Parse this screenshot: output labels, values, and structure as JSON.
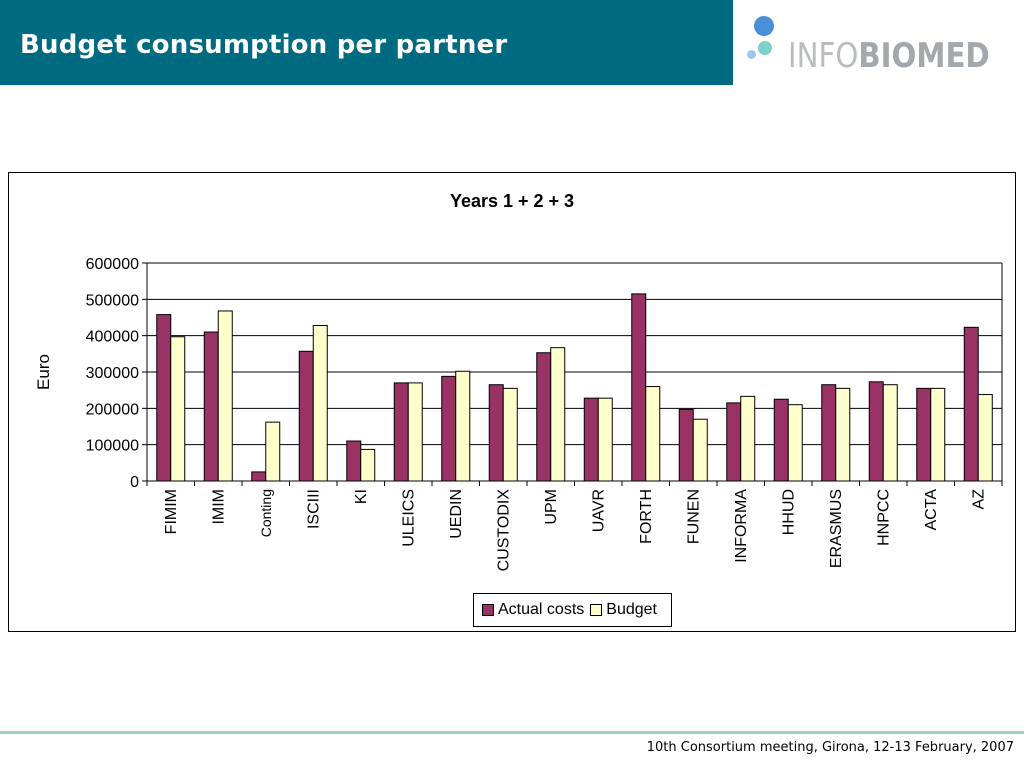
{
  "header": {
    "title": "Budget consumption per partner"
  },
  "logo": {
    "text_light": "INFO",
    "text_bold": "BIOMED",
    "dot_colors": [
      "#4a90d9",
      "#7fd0c9",
      "#9ec8e8"
    ]
  },
  "colors": {
    "title_bar": "#006a80",
    "actual": "#993366",
    "budget": "#ffffcc",
    "footer_line": "#9fd3c7"
  },
  "chart_data": {
    "type": "bar",
    "title": "Years 1 + 2 + 3",
    "xlabel": "",
    "ylabel": "Euro",
    "ylim": [
      0,
      600000
    ],
    "yticks": [
      "0",
      "100000",
      "200000",
      "300000",
      "400000",
      "500000",
      "600000"
    ],
    "grid": true,
    "legend_position": "bottom",
    "categories": [
      "FIMIM",
      "IMIM",
      "Conting",
      "ISCIII",
      "KI",
      "ULEICS",
      "UEDIN",
      "CUSTODIX",
      "UPM",
      "UAVR",
      "FORTH",
      "FUNEN",
      "INFORMA",
      "HHUD",
      "ERASMUS",
      "HNPCC",
      "ACTA",
      "AZ"
    ],
    "series": [
      {
        "name": "Actual costs",
        "values": [
          458000,
          410000,
          25000,
          357000,
          110000,
          270000,
          288000,
          265000,
          353000,
          228000,
          515000,
          197000,
          215000,
          225000,
          265000,
          273000,
          255000,
          423000
        ]
      },
      {
        "name": "Budget",
        "values": [
          397000,
          468000,
          162000,
          428000,
          87000,
          270000,
          302000,
          255000,
          367000,
          228000,
          260000,
          170000,
          233000,
          210000,
          255000,
          265000,
          255000,
          238000
        ]
      }
    ]
  },
  "footer": {
    "text": "10th Consortium meeting, Girona, 12-13 February, 2007"
  }
}
